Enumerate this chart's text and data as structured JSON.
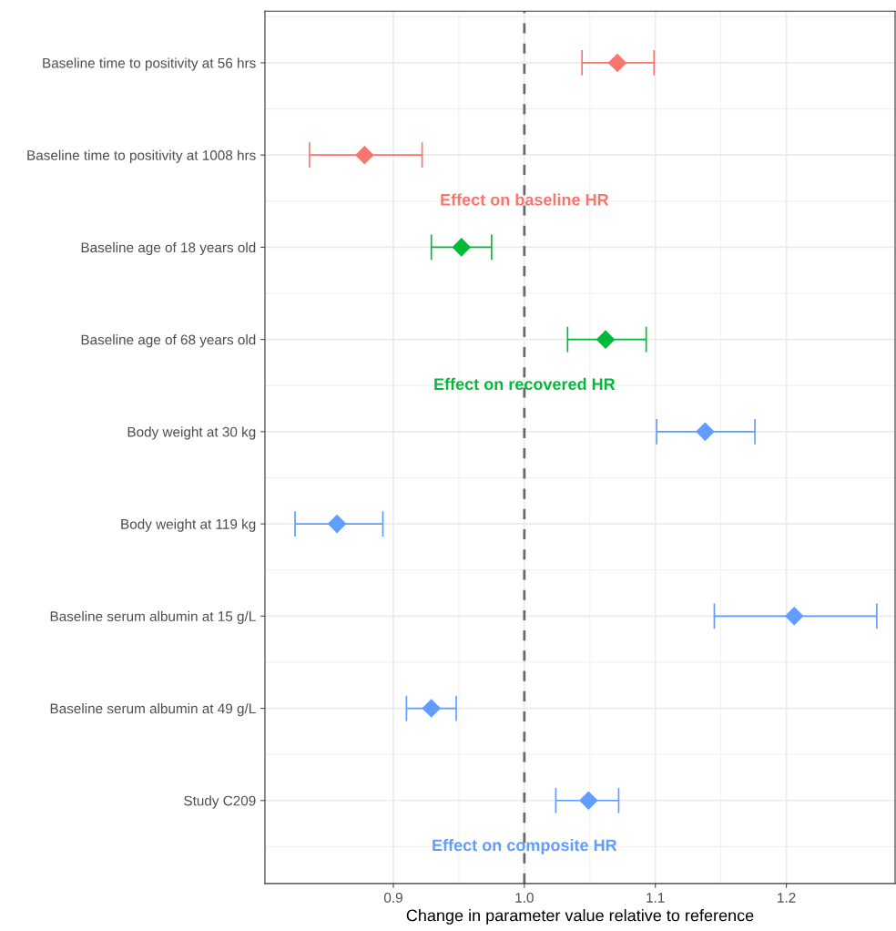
{
  "chart_data": {
    "type": "scatter",
    "categories": [
      "Baseline time to positivity at 56 hrs",
      "Baseline time to positivity at 1008 hrs",
      "Baseline age of 18 years old",
      "Baseline age of 68 years old",
      "Body weight at 30 kg",
      "Body weight at 119 kg",
      "Baseline serum albumin at 15 g/L",
      "Baseline serum albumin at 49 g/L",
      "Study C209"
    ],
    "series": [
      {
        "name": "Effect on baseline HR",
        "color": "#f8766d",
        "values": [
          1.071,
          0.878,
          null,
          null,
          null,
          null,
          null,
          null,
          null
        ],
        "errors": [
          [
            1.044,
            1.099
          ],
          [
            0.836,
            0.922
          ],
          null,
          null,
          null,
          null,
          null,
          null,
          null
        ]
      },
      {
        "name": "Effect on recovered HR",
        "color": "#00ba38",
        "values": [
          null,
          null,
          0.952,
          1.062,
          null,
          null,
          null,
          null,
          null
        ],
        "errors": [
          null,
          null,
          [
            0.929,
            0.975
          ],
          [
            1.033,
            1.093
          ],
          null,
          null,
          null,
          null,
          null
        ]
      },
      {
        "name": "Effect on composite HR",
        "color": "#619cff",
        "values": [
          null,
          null,
          null,
          null,
          1.138,
          0.857,
          1.206,
          0.929,
          1.049
        ],
        "errors": [
          null,
          null,
          null,
          null,
          [
            1.101,
            1.176
          ],
          [
            0.825,
            0.892
          ],
          [
            1.145,
            1.269
          ],
          [
            0.91,
            0.948
          ],
          [
            1.024,
            1.072
          ]
        ]
      }
    ],
    "orientation": "horizontal",
    "xlabel": "Change in parameter value relative to reference",
    "xlim": [
      0.802,
      1.283
    ],
    "xticks": [
      0.9,
      {
        "value": 1.0,
        "label": "1.0"
      },
      1.1,
      1.2
    ],
    "ref_lines": [
      {
        "axis": "x",
        "value": 1.0,
        "color": "#696969",
        "line_style": "dashed"
      }
    ],
    "marker": "diamond",
    "grid": true,
    "legend": false
  }
}
